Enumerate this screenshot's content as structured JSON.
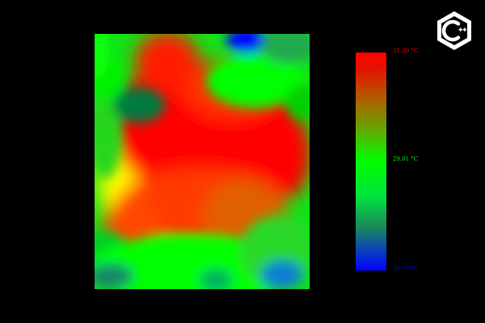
{
  "thermal_view": {
    "color_scale": {
      "max_label": "31.20 °C",
      "mid_label": "29.01 °C",
      "min_label": "26.70 °C",
      "max_color": "#ff0000",
      "mid_color": "#00ff00",
      "min_color": "#0000ff"
    },
    "logo": {
      "icon": "cpp-logo-icon",
      "color": "#ffffff"
    }
  }
}
